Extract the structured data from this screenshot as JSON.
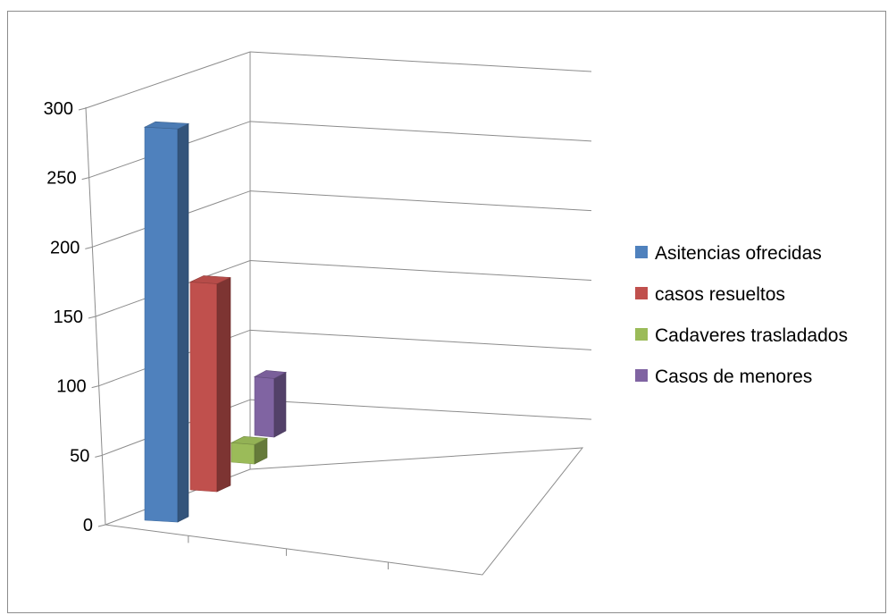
{
  "chart_data": {
    "type": "bar",
    "subtype": "3d-clustered-column",
    "title": "",
    "xlabel": "",
    "ylabel": "",
    "ylim": [
      0,
      300
    ],
    "yticks": [
      "0",
      "50",
      "100",
      "150",
      "200",
      "250",
      "300"
    ],
    "grid": true,
    "legend_position": "right",
    "series": [
      {
        "name": "Asitencias ofrecidas",
        "value": 281,
        "color": "#4F81BD"
      },
      {
        "name": "casos resueltos",
        "value": 153,
        "color": "#C0504D"
      },
      {
        "name": "Cadaveres trasladados",
        "value": 14,
        "color": "#9BBB59"
      },
      {
        "name": "Casos de menores",
        "value": 40,
        "color": "#8064A2"
      }
    ]
  }
}
